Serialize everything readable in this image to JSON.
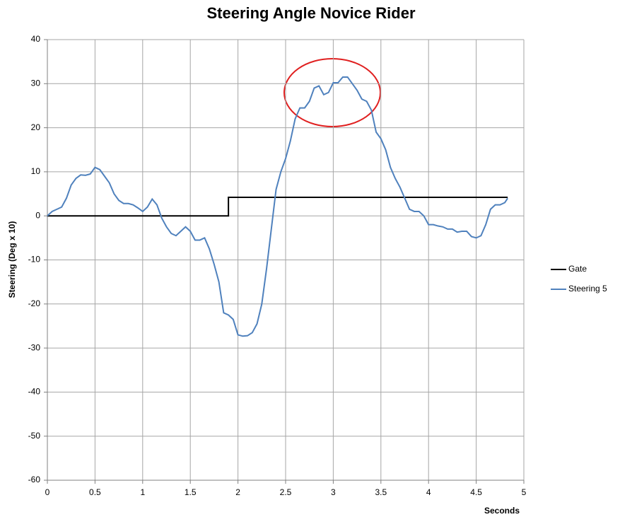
{
  "chart_data": {
    "type": "line",
    "title": "Steering Angle Novice Rider",
    "xlabel": "Seconds",
    "ylabel": "Steering (Deg x 10)",
    "xlim": [
      0,
      5
    ],
    "xticks": [
      0,
      0.5,
      1,
      1.5,
      2,
      2.5,
      3,
      3.5,
      4,
      4.5,
      5
    ],
    "ylim": [
      -60,
      40
    ],
    "yticks": [
      -60,
      -50,
      -40,
      -30,
      -20,
      -10,
      0,
      10,
      20,
      30,
      40
    ],
    "grid": true,
    "legend": "right",
    "series": [
      {
        "name": "Gate",
        "color": "#000000",
        "x": [
          0,
          1.9,
          1.9,
          4.83
        ],
        "values": [
          0,
          0,
          4.2,
          4.2
        ]
      },
      {
        "name": "Steering 5",
        "color": "#4f81bd",
        "x": [
          0,
          0.05,
          0.1,
          0.15,
          0.2,
          0.25,
          0.3,
          0.35,
          0.4,
          0.45,
          0.5,
          0.55,
          0.6,
          0.65,
          0.7,
          0.75,
          0.8,
          0.85,
          0.9,
          0.95,
          1.0,
          1.05,
          1.1,
          1.15,
          1.2,
          1.25,
          1.3,
          1.35,
          1.4,
          1.45,
          1.5,
          1.55,
          1.6,
          1.65,
          1.7,
          1.75,
          1.8,
          1.85,
          1.9,
          1.95,
          2.0,
          2.05,
          2.1,
          2.15,
          2.2,
          2.25,
          2.3,
          2.35,
          2.4,
          2.45,
          2.5,
          2.55,
          2.6,
          2.65,
          2.7,
          2.75,
          2.8,
          2.85,
          2.9,
          2.95,
          3.0,
          3.05,
          3.1,
          3.15,
          3.2,
          3.25,
          3.3,
          3.35,
          3.4,
          3.45,
          3.5,
          3.55,
          3.6,
          3.65,
          3.7,
          3.75,
          3.8,
          3.85,
          3.9,
          3.95,
          4.0,
          4.05,
          4.1,
          4.15,
          4.2,
          4.25,
          4.3,
          4.35,
          4.4,
          4.45,
          4.5,
          4.55,
          4.6,
          4.65,
          4.7,
          4.75,
          4.8,
          4.83
        ],
        "values": [
          0,
          1,
          1.5,
          2,
          4,
          7,
          8.5,
          9.3,
          9.2,
          9.5,
          11,
          10.5,
          9,
          7.5,
          5,
          3.5,
          2.8,
          2.8,
          2.5,
          1.8,
          1,
          2,
          3.8,
          2.5,
          -0.5,
          -2.5,
          -4,
          -4.5,
          -3.5,
          -2.5,
          -3.5,
          -5.5,
          -5.5,
          -5,
          -7.5,
          -11,
          -15,
          -22,
          -22.5,
          -23.5,
          -27,
          -27.3,
          -27.2,
          -26.5,
          -24.5,
          -20,
          -12,
          -3,
          6,
          10,
          13,
          17,
          22,
          24.5,
          24.5,
          26,
          29,
          29.5,
          27.5,
          28,
          30.2,
          30.2,
          31.5,
          31.5,
          30,
          28.5,
          26.5,
          26,
          24,
          19,
          17.5,
          15,
          11,
          8.5,
          6.5,
          4,
          1.5,
          1,
          1,
          0,
          -2,
          -2,
          -2.3,
          -2.5,
          -3,
          -3,
          -3.7,
          -3.5,
          -3.5,
          -4.7,
          -5,
          -4.5,
          -2,
          1.5,
          2.5,
          2.5,
          3,
          4
        ]
      }
    ]
  }
}
